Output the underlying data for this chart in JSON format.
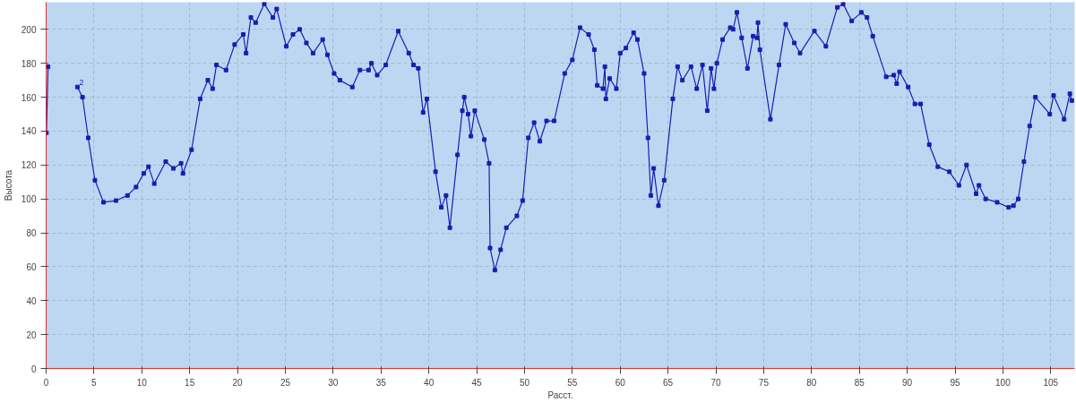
{
  "chart_data": {
    "type": "line",
    "xlabel": "Расст.",
    "ylabel": "Высота",
    "x": [
      0.03,
      0.2,
      1.5,
      3.27,
      3.8,
      4.4,
      5.1,
      6.0,
      7.3,
      8.5,
      9.4,
      10.2,
      10.7,
      11.3,
      12.5,
      13.3,
      14.1,
      14.3,
      15.2,
      16.1,
      16.9,
      17.4,
      17.8,
      18.8,
      19.7,
      20.6,
      20.9,
      21.4,
      21.9,
      22.8,
      23.7,
      24.1,
      25.1,
      25.8,
      26.5,
      27.2,
      27.9,
      28.9,
      29.4,
      30.1,
      30.7,
      32.0,
      32.8,
      33.7,
      34.0,
      34.6,
      35.5,
      36.8,
      37.9,
      38.4,
      38.9,
      39.4,
      39.8,
      40.7,
      41.3,
      41.8,
      42.2,
      43.0,
      43.5,
      43.7,
      44.1,
      44.4,
      44.8,
      45.8,
      46.3,
      46.4,
      46.9,
      47.5,
      48.1,
      49.2,
      49.8,
      50.4,
      51.0,
      51.6,
      52.3,
      53.1,
      54.2,
      55.0,
      55.8,
      56.7,
      57.3,
      57.6,
      58.2,
      58.4,
      58.5,
      58.9,
      59.6,
      60.0,
      60.6,
      61.4,
      61.8,
      62.5,
      62.9,
      63.2,
      63.5,
      64.0,
      64.6,
      65.5,
      66.0,
      66.5,
      67.4,
      68.0,
      68.6,
      69.1,
      69.5,
      69.8,
      70.1,
      70.7,
      71.5,
      71.8,
      72.2,
      72.7,
      73.3,
      73.9,
      74.3,
      74.4,
      74.6,
      75.7,
      76.6,
      77.3,
      78.2,
      78.8,
      80.3,
      81.5,
      82.7,
      83.3,
      84.2,
      85.2,
      85.8,
      86.4,
      87.8,
      88.6,
      88.9,
      89.2,
      90.1,
      90.8,
      91.4,
      92.3,
      93.2,
      94.4,
      95.4,
      96.2,
      97.2,
      97.5,
      98.2,
      99.4,
      100.6,
      101.1,
      101.6,
      102.2,
      102.8,
      103.4,
      104.9,
      105.3,
      106.4,
      107.0,
      107.2
    ],
    "series": [
      {
        "color": "#1c1cb0",
        "values": [
          139,
          178,
          null,
          166,
          160,
          136,
          111,
          98,
          99,
          102,
          107,
          115,
          119,
          109,
          122,
          118,
          121,
          115,
          129,
          159,
          170,
          165,
          179,
          176,
          191,
          197,
          186,
          207,
          204,
          215,
          207,
          212,
          190,
          197,
          200,
          192,
          186,
          194,
          185,
          174,
          170,
          166,
          176,
          176,
          180,
          173,
          179,
          199,
          186,
          179,
          177,
          151,
          159,
          116,
          95,
          102,
          83,
          126,
          152,
          160,
          150,
          137,
          152,
          135,
          121,
          71,
          58,
          70,
          83,
          90,
          99,
          136,
          145,
          134,
          146,
          146,
          174,
          182,
          201,
          197,
          188,
          167,
          165,
          178,
          159,
          171,
          165,
          186,
          189,
          198,
          194,
          174,
          136,
          102,
          118,
          96,
          111,
          159,
          178,
          170,
          178,
          165,
          179,
          152,
          177,
          165,
          180,
          194,
          201,
          200,
          210,
          195,
          177,
          196,
          195,
          204,
          188,
          147,
          179,
          203,
          192,
          186,
          199,
          190,
          213,
          215,
          205,
          210,
          207,
          196,
          172,
          173,
          168,
          175,
          166,
          156,
          156,
          132,
          119,
          116,
          108,
          120,
          103,
          108,
          100,
          98,
          95,
          96,
          100,
          122,
          143,
          160,
          150,
          161,
          147,
          162,
          158
        ]
      }
    ],
    "annotations": [
      "2"
    ],
    "xlim": [
      0,
      107.5
    ],
    "ylim": [
      0,
      216
    ],
    "xticks": [
      0,
      5,
      10,
      15,
      20,
      25,
      30,
      35,
      40,
      45,
      50,
      55,
      60,
      65,
      70,
      75,
      80,
      85,
      90,
      95,
      100,
      105
    ],
    "yticks": [
      0,
      20,
      40,
      60,
      80,
      100,
      120,
      140,
      160,
      180,
      200
    ],
    "grid": true,
    "marker": "square",
    "line_style": "solid"
  }
}
